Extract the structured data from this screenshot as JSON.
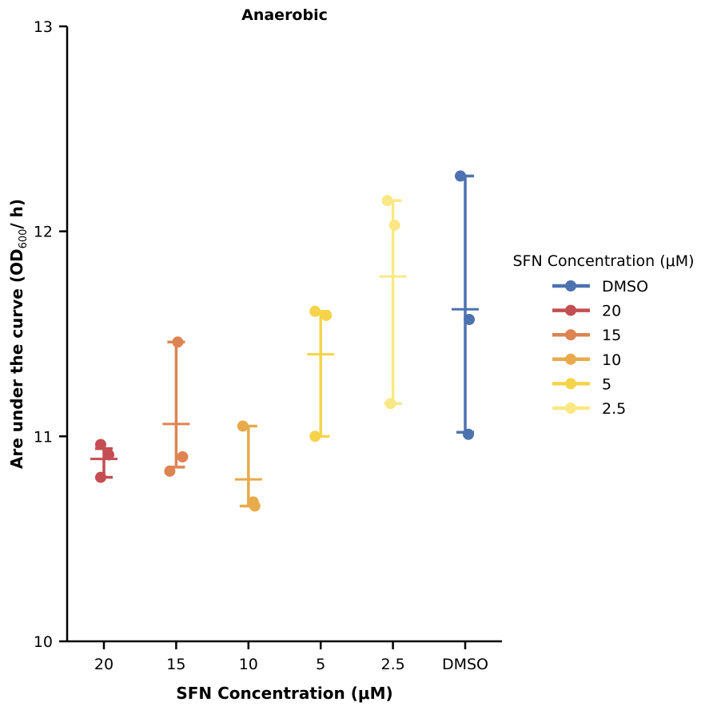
{
  "chart_data": {
    "type": "scatter",
    "title": "Anaerobic",
    "xlabel": "SFN Concentration (μM)",
    "ylabel_main": "Are under the curve (OD",
    "ylabel_sub": "600",
    "ylabel_tail": "/ h)",
    "ylim": [
      10,
      13
    ],
    "yticks": [
      "10",
      "11",
      "12",
      "13"
    ],
    "categories": [
      "20",
      "15",
      "10",
      "5",
      "2.5",
      "DMSO"
    ],
    "grid": false,
    "legend_position": "right",
    "legend": {
      "title": "SFN Concentration (μM)",
      "entries": [
        "DMSO",
        "20",
        "15",
        "10",
        "5",
        "2.5"
      ]
    },
    "series": [
      {
        "name": "20",
        "color": "#c44e52",
        "points": [
          10.96,
          10.91,
          10.8
        ],
        "mean": 10.89,
        "sd_low": 10.8,
        "sd_high": 10.94
      },
      {
        "name": "15",
        "color": "#dd8452",
        "points": [
          11.46,
          10.9,
          10.83
        ],
        "mean": 11.06,
        "sd_low": 10.85,
        "sd_high": 11.46
      },
      {
        "name": "10",
        "color": "#e8aa4b",
        "points": [
          11.05,
          10.68,
          10.66
        ],
        "mean": 10.79,
        "sd_low": 10.66,
        "sd_high": 11.05
      },
      {
        "name": "5",
        "color": "#f5d44a",
        "points": [
          11.61,
          11.59,
          11.0
        ],
        "mean": 11.4,
        "sd_low": 11.0,
        "sd_high": 11.61
      },
      {
        "name": "2.5",
        "color": "#fae885",
        "points": [
          12.15,
          12.03,
          11.16
        ],
        "mean": 11.78,
        "sd_low": 11.16,
        "sd_high": 12.15
      },
      {
        "name": "DMSO",
        "color": "#4c72b0",
        "points": [
          12.27,
          11.57,
          11.01
        ],
        "mean": 11.62,
        "sd_low": 11.02,
        "sd_high": 12.27
      }
    ]
  }
}
